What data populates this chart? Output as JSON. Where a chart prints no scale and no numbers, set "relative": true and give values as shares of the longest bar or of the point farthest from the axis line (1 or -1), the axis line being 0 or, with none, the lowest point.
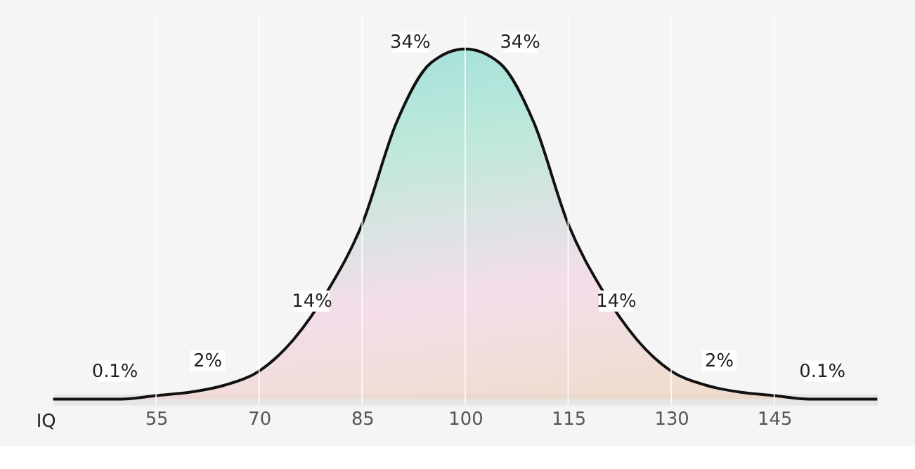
{
  "chart_data": {
    "type": "area",
    "relative": true,
    "xlabel": "IQ",
    "xlim": [
      40,
      160
    ],
    "xticks": [
      55,
      70,
      85,
      100,
      115,
      130,
      145
    ],
    "grid": "x",
    "series": [
      {
        "color": "#a8e3cf",
        "x": [
          40,
          45,
          50,
          55,
          60,
          65,
          70,
          75,
          80,
          85,
          90,
          95,
          100,
          105,
          110,
          115,
          120,
          125,
          130,
          135,
          140,
          145,
          150,
          155,
          160
        ],
        "values": [
          0,
          0,
          0,
          0.01,
          0.02,
          0.04,
          0.08,
          0.17,
          0.31,
          0.5,
          0.79,
          0.96,
          1,
          0.96,
          0.79,
          0.5,
          0.31,
          0.17,
          0.08,
          0.04,
          0.02,
          0.01,
          0,
          0,
          0
        ]
      }
    ],
    "annotations": [
      {
        "text": "0.1%",
        "x": 49,
        "y": 0.08
      },
      {
        "text": "2%",
        "x": 62.5,
        "y": 0.11
      },
      {
        "text": "14%",
        "x": 77.7,
        "y": 0.28
      },
      {
        "text": "34%",
        "x": 92,
        "y": 1.02
      },
      {
        "text": "34%",
        "x": 108,
        "y": 1.02
      },
      {
        "text": "14%",
        "x": 122,
        "y": 0.28
      },
      {
        "text": "2%",
        "x": 137,
        "y": 0.11
      },
      {
        "text": "0.1%",
        "x": 152,
        "y": 0.08
      }
    ]
  }
}
